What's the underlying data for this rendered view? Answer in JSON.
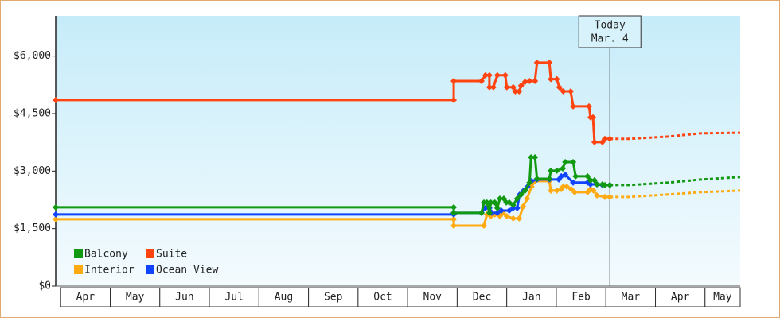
{
  "chart_data": {
    "type": "line",
    "categories": [
      "Apr",
      "May",
      "Jun",
      "Jul",
      "Aug",
      "Sep",
      "Oct",
      "Nov",
      "Dec",
      "Jan",
      "Feb",
      "Mar",
      "Apr",
      "May"
    ],
    "xlim": [
      -0.1,
      13.71
    ],
    "ylim": [
      0,
      7050
    ],
    "yticks": [
      {
        "value": 0,
        "label": "$0"
      },
      {
        "value": 1500,
        "label": "$1,500"
      },
      {
        "value": 3000,
        "label": "$3,000"
      },
      {
        "value": 4500,
        "label": "$4,500"
      },
      {
        "value": 6000,
        "label": "$6,000"
      }
    ],
    "annotation": {
      "x": 11.08,
      "lines": [
        "Today",
        "Mar. 4"
      ]
    },
    "series": [
      {
        "name": "Balcony",
        "color": "#119911",
        "x": [
          -0.1,
          7.93,
          7.93,
          8.49,
          8.54,
          8.6,
          8.65,
          8.68,
          8.76,
          8.81,
          8.86,
          8.94,
          8.99,
          9.05,
          9.13,
          9.21,
          9.29,
          9.37,
          9.46,
          9.49,
          9.57,
          9.61,
          9.86,
          9.89,
          10.01,
          10.13,
          10.18,
          10.34,
          10.39,
          10.63,
          10.69,
          10.77,
          10.82,
          10.93,
          10.98,
          11.08
        ],
        "values": [
          2055,
          2055,
          1910,
          1910,
          2180,
          2180,
          1910,
          2180,
          2180,
          2035,
          2280,
          2280,
          2180,
          2180,
          2115,
          2280,
          2385,
          2490,
          2700,
          3360,
          3360,
          2800,
          2800,
          3010,
          3010,
          3070,
          3235,
          3235,
          2865,
          2865,
          2760,
          2760,
          2655,
          2655,
          2635,
          2635
        ],
        "forecast_x": [
          11.08,
          11.46,
          12.26,
          12.91,
          13.71
        ],
        "forecast_values": [
          2635,
          2635,
          2700,
          2780,
          2845
        ]
      },
      {
        "name": "Suite",
        "color": "#ff4411",
        "x": [
          -0.1,
          7.93,
          7.93,
          8.49,
          8.57,
          8.65,
          8.65,
          8.73,
          8.81,
          8.97,
          9.0,
          9.13,
          9.17,
          9.25,
          9.29,
          9.37,
          9.46,
          9.57,
          9.61,
          9.86,
          9.89,
          10.01,
          10.06,
          10.14,
          10.29,
          10.34,
          10.66,
          10.69,
          10.74,
          10.77,
          10.93,
          10.98,
          11.08
        ],
        "values": [
          4855,
          4855,
          5350,
          5350,
          5500,
          5500,
          5190,
          5190,
          5500,
          5500,
          5190,
          5190,
          5080,
          5080,
          5230,
          5330,
          5350,
          5350,
          5830,
          5830,
          5400,
          5400,
          5190,
          5080,
          5080,
          4690,
          4690,
          4400,
          4400,
          3755,
          3755,
          3840,
          3840
        ],
        "forecast_x": [
          11.08,
          11.46,
          12.26,
          12.91,
          13.71
        ],
        "forecast_values": [
          3840,
          3840,
          3900,
          3985,
          4000
        ]
      },
      {
        "name": "Interior",
        "color": "#ffaa11",
        "x": [
          -0.1,
          7.93,
          7.93,
          8.54,
          8.6,
          8.68,
          8.76,
          8.86,
          8.92,
          9.0,
          9.13,
          9.25,
          9.33,
          9.41,
          9.5,
          9.57,
          9.86,
          9.89,
          10.01,
          10.1,
          10.14,
          10.21,
          10.3,
          10.37,
          10.63,
          10.69,
          10.75,
          10.82,
          10.98,
          11.08
        ],
        "values": [
          1745,
          1745,
          1575,
          1575,
          1870,
          1825,
          1870,
          1825,
          1910,
          1825,
          1765,
          1765,
          2075,
          2280,
          2595,
          2740,
          2740,
          2490,
          2490,
          2530,
          2595,
          2595,
          2530,
          2450,
          2450,
          2530,
          2490,
          2365,
          2325,
          2325
        ],
        "forecast_x": [
          11.08,
          11.46,
          12.26,
          12.91,
          13.71
        ],
        "forecast_values": [
          2325,
          2325,
          2390,
          2450,
          2490
        ]
      },
      {
        "name": "Ocean View",
        "color": "#1144ff",
        "x": [
          -0.1,
          7.93,
          7.93,
          8.49,
          8.57,
          8.65,
          8.7,
          8.81,
          8.89,
          9.05,
          9.13,
          9.21,
          9.26,
          9.34,
          9.42,
          9.5,
          9.61,
          9.86,
          10.05,
          10.1,
          10.18,
          10.34,
          10.63,
          10.69,
          10.82,
          10.93,
          11.08
        ],
        "values": [
          1870,
          1870,
          1910,
          1910,
          2035,
          2035,
          1910,
          1910,
          1970,
          1970,
          2035,
          2035,
          2385,
          2490,
          2595,
          2740,
          2780,
          2780,
          2780,
          2865,
          2905,
          2700,
          2700,
          2655,
          2655,
          2635,
          2635
        ]
      }
    ]
  }
}
